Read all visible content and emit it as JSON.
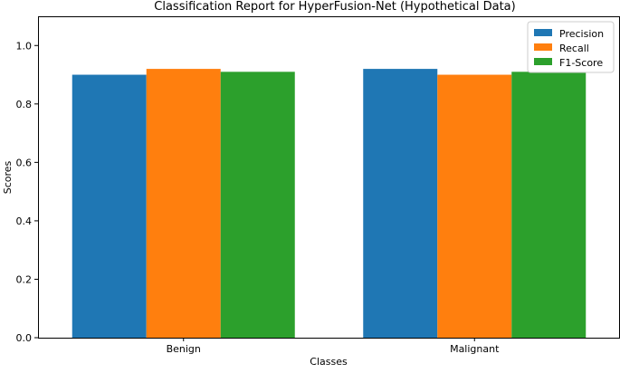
{
  "chart_data": {
    "type": "bar",
    "title": "Classification Report for HyperFusion-Net (Hypothetical Data)",
    "xlabel": "Classes",
    "ylabel": "Scores",
    "categories": [
      "Benign",
      "Malignant"
    ],
    "series": [
      {
        "name": "Precision",
        "values": [
          0.9,
          0.92
        ],
        "color": "#1f77b4"
      },
      {
        "name": "Recall",
        "values": [
          0.92,
          0.9
        ],
        "color": "#ff7f0e"
      },
      {
        "name": "F1-Score",
        "values": [
          0.91,
          0.91
        ],
        "color": "#2ca02c"
      }
    ],
    "ylim": [
      0,
      1.1
    ],
    "yticks": [
      "0.0",
      "0.2",
      "0.4",
      "0.6",
      "0.8",
      "1.0"
    ],
    "grid": false,
    "legend": "top-right"
  }
}
